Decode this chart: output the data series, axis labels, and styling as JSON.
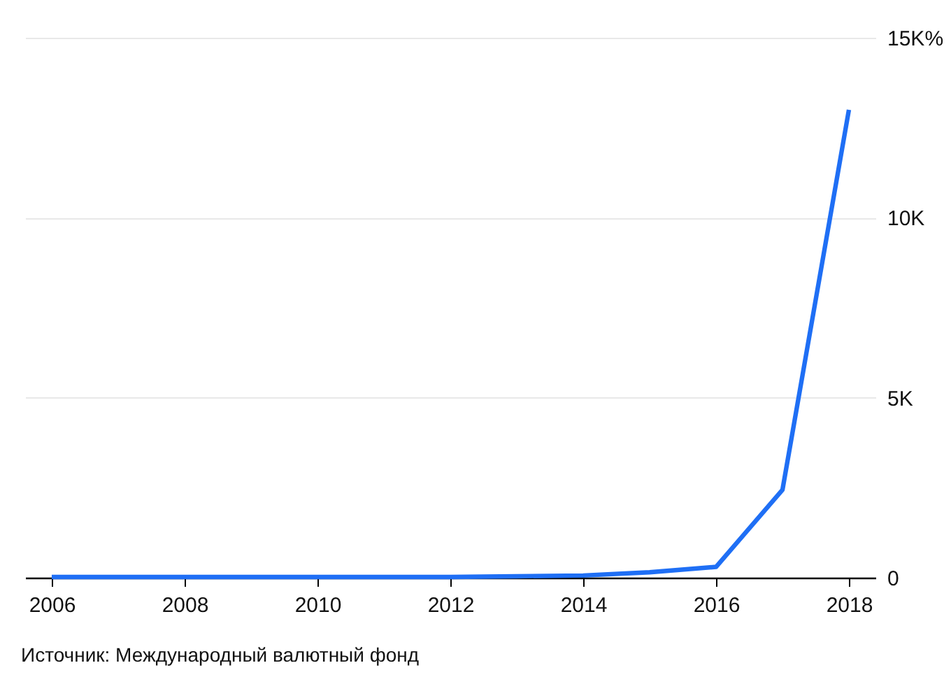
{
  "chart_data": {
    "type": "line",
    "x": [
      2006,
      2007,
      2008,
      2009,
      2010,
      2011,
      2012,
      2013,
      2014,
      2015,
      2016,
      2017,
      2018
    ],
    "series": [
      {
        "color": "#1f6ff5",
        "values": [
          20,
          20,
          20,
          20,
          20,
          20,
          20,
          40,
          60,
          150,
          300,
          2440,
          13000
        ]
      }
    ],
    "xlim": [
      2005.6,
      2018.4
    ],
    "xticks": [
      2006,
      2008,
      2010,
      2012,
      2014,
      2016,
      2018
    ],
    "ylim": [
      0,
      15000
    ],
    "yticks": [
      {
        "value": 0,
        "label": "0"
      },
      {
        "value": 5000,
        "label": "5K"
      },
      {
        "value": 10000,
        "label": "10K"
      },
      {
        "value": 15000,
        "label": "15K%"
      }
    ],
    "grid": "y",
    "legend": false,
    "marker": "none",
    "line_style": "solid",
    "annotations": [
      "Источник: Международный валютный фонд"
    ]
  }
}
